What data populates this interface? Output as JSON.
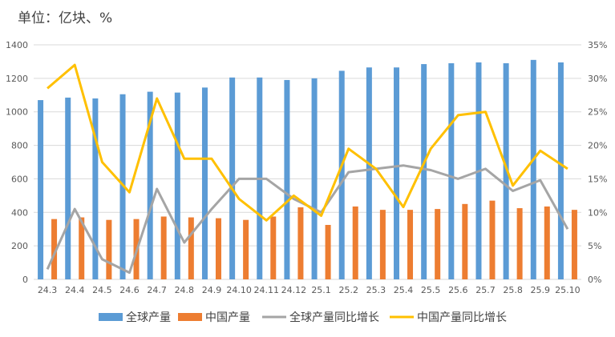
{
  "unit_label": "单位：亿块、%",
  "chart_data": {
    "type": "bar",
    "categories": [
      "24.3",
      "24.4",
      "24.5",
      "24.6",
      "24.7",
      "24.8",
      "24.9",
      "24.10",
      "24.11",
      "24.12",
      "25.1",
      "25.2",
      "25.3",
      "25.4",
      "25.5",
      "25.6",
      "25.7",
      "25.8",
      "25.9",
      "25.10"
    ],
    "series": [
      {
        "name": "全球产量",
        "type": "bar",
        "axis": "left",
        "color": "#5B9BD5",
        "values": [
          1070,
          1085,
          1080,
          1105,
          1120,
          1115,
          1145,
          1205,
          1205,
          1190,
          1200,
          1245,
          1265,
          1265,
          1285,
          1290,
          1295,
          1290,
          1310,
          1295
        ]
      },
      {
        "name": "中国产量",
        "type": "bar",
        "axis": "left",
        "color": "#ED7D31",
        "values": [
          360,
          370,
          355,
          360,
          375,
          370,
          365,
          355,
          375,
          430,
          325,
          435,
          415,
          415,
          420,
          450,
          470,
          425,
          435,
          415
        ]
      },
      {
        "name": "全球产量同比增长",
        "type": "line",
        "axis": "right",
        "color": "#A5A5A5",
        "values": [
          1.5,
          10.5,
          3.0,
          1.0,
          13.5,
          5.5,
          10.5,
          15.0,
          15.0,
          12.0,
          10.0,
          16.0,
          16.5,
          17.0,
          16.3,
          15.0,
          16.5,
          13.2,
          14.8,
          7.5
        ]
      },
      {
        "name": "中国产量同比增长",
        "type": "line",
        "axis": "right",
        "color": "#FFC000",
        "values": [
          28.5,
          32.0,
          17.5,
          13.0,
          27.0,
          18.0,
          18.0,
          12.0,
          8.8,
          12.5,
          9.5,
          19.5,
          16.5,
          10.8,
          19.5,
          24.5,
          25.0,
          14.0,
          19.2,
          16.5
        ]
      }
    ],
    "y_left": {
      "range": [
        0,
        1400
      ],
      "ticks": [
        "0",
        "200",
        "400",
        "600",
        "800",
        "1000",
        "1200",
        "1400"
      ]
    },
    "y_right": {
      "range": [
        0,
        35
      ],
      "ticks": [
        "0%",
        "5%",
        "10%",
        "15%",
        "20%",
        "25%",
        "30%",
        "35%"
      ]
    },
    "grid": true,
    "legend_position": "bottom"
  }
}
